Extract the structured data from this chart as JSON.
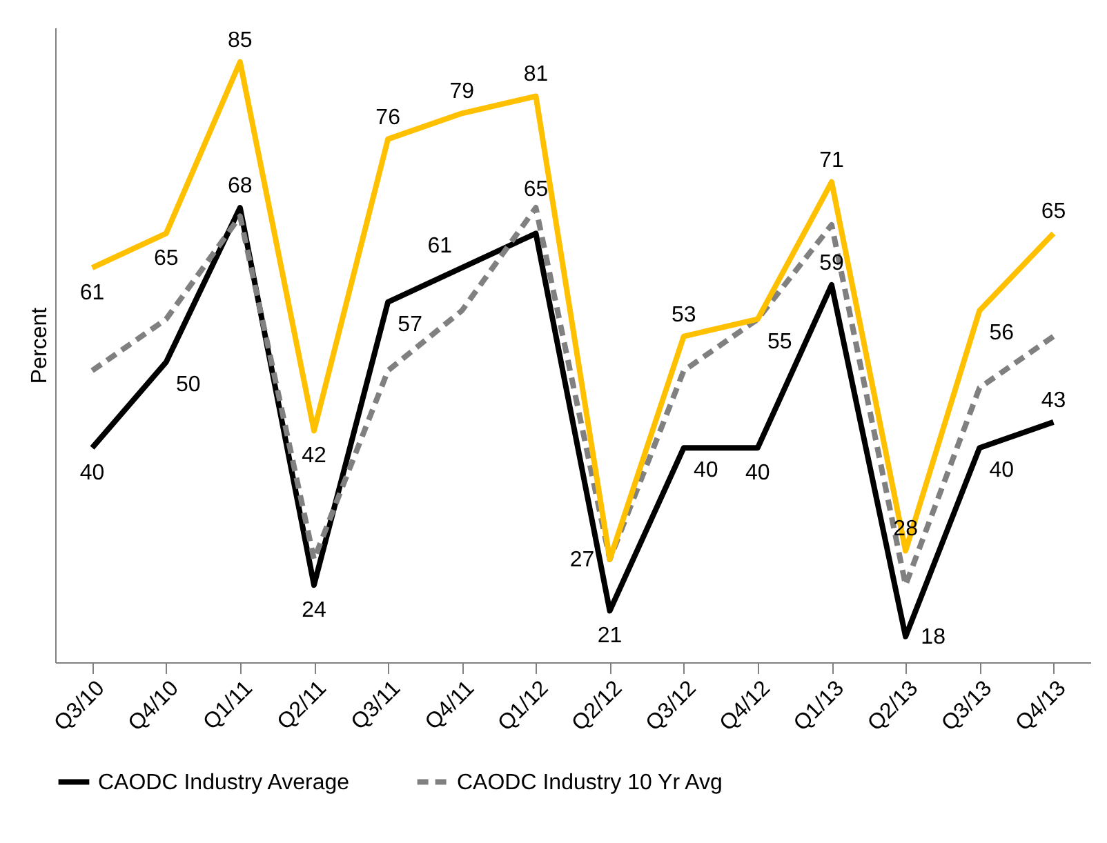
{
  "chart_data": {
    "type": "line",
    "ylabel": "Percent",
    "categories": [
      "Q3/10",
      "Q4/10",
      "Q1/11",
      "Q2/11",
      "Q3/11",
      "Q4/11",
      "Q1/12",
      "Q2/12",
      "Q3/12",
      "Q4/12",
      "Q1/13",
      "Q2/13",
      "Q3/13",
      "Q4/13"
    ],
    "series": [
      {
        "name": "CAODC Industry Average",
        "color": "#000000",
        "line_style": "solid",
        "values": [
          40,
          50,
          68,
          24,
          57,
          61,
          65,
          21,
          40,
          40,
          59,
          18,
          40,
          43
        ],
        "value_labels": [
          "40",
          "50",
          "68",
          "24",
          "57",
          "61",
          "65",
          "21",
          "40",
          "40",
          "59",
          "18",
          "40",
          "43"
        ]
      },
      {
        "name": "CAODC Industry 10 Yr Avg",
        "color": "#808080",
        "line_style": "dashed",
        "values": [
          49,
          55,
          67,
          27,
          49,
          56,
          68,
          27,
          49,
          55,
          66,
          24,
          47,
          53
        ]
      },
      {
        "color": "#ffc000",
        "line_style": "solid",
        "values": [
          61,
          65,
          85,
          42,
          76,
          79,
          81,
          27,
          53,
          55,
          71,
          28,
          56,
          65
        ],
        "value_labels": [
          "61",
          "65",
          "85",
          "42",
          "76",
          "79",
          "81",
          "27",
          "53",
          "55",
          "71",
          "28",
          "56",
          "65"
        ]
      }
    ],
    "ylim": [
      15,
      89
    ],
    "tick_labels": "x",
    "grid": false,
    "legend": "bottom",
    "marker": "none"
  }
}
